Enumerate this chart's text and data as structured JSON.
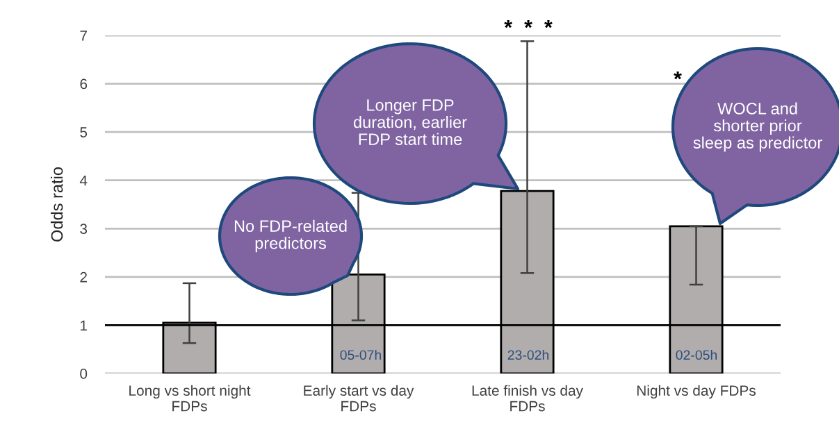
{
  "chart_data": {
    "type": "bar",
    "ylabel": "Odds ratio",
    "categories": [
      "Long vs short night\nFDPs",
      "Early start vs day\nFDPs",
      "Late finish vs day\nFDPs",
      "Night vs day FDPs"
    ],
    "values": [
      1.05,
      2.05,
      3.78,
      3.05
    ],
    "errors": [
      [
        0.63,
        1.87
      ],
      [
        1.1,
        3.74
      ],
      [
        2.08,
        6.88
      ],
      [
        1.84,
        3.05
      ]
    ],
    "color": "#b0adac",
    "ylim": [
      0,
      7
    ],
    "yticks": [
      0,
      1,
      2,
      3,
      4,
      5,
      6,
      7
    ],
    "grid": "y",
    "legend": false,
    "ref_lines": [
      {
        "axis": "y",
        "value": 1,
        "color": "#000000"
      }
    ],
    "annotations": [
      "05-07h",
      "23-02h",
      "02-05h",
      "*  *  *",
      "*",
      "No FDP-related\npredictors",
      "Longer FDP\nduration, earlier\nFDP start time",
      "WOCL and\nshorter prior\nsleep as predictor"
    ]
  }
}
